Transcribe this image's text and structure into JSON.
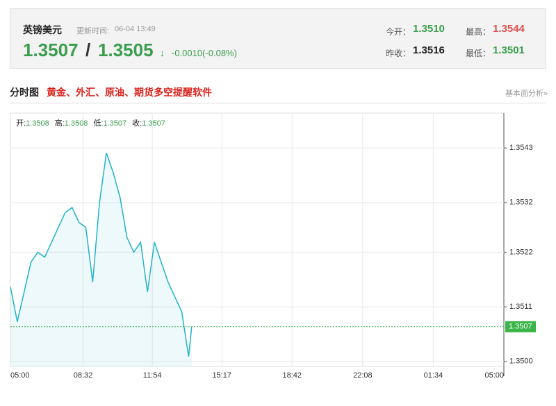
{
  "header": {
    "name": "英镑美元",
    "update_label": "更新时间:",
    "update_time": "06-04 13:49",
    "bid": "1.3507",
    "sep": "/",
    "ask": "1.3505",
    "arrow": "↓",
    "change": "-0.0010(-0.08%)",
    "stats": [
      {
        "label": "今开：",
        "value": "1.3510"
      },
      {
        "label": "最高：",
        "value": "1.3544"
      },
      {
        "label": "昨收：",
        "value": "1.3516"
      },
      {
        "label": "最低：",
        "value": "1.3501"
      }
    ]
  },
  "section": {
    "title": "分时图",
    "promo": "黄金、外汇、原油、期货多空提醒软件",
    "link": "基本面分析»"
  },
  "chart_data": {
    "type": "line",
    "legend": [
      {
        "label": "开:",
        "value": "1.3508"
      },
      {
        "label": "高:",
        "value": "1.3508"
      },
      {
        "label": "低:",
        "value": "1.3507"
      },
      {
        "label": "收:",
        "value": "1.3507"
      }
    ],
    "xticks": [
      "05:00",
      "08:32",
      "11:54",
      "15:17",
      "18:42",
      "22:08",
      "01:34",
      "05:00"
    ],
    "ylim": [
      1.3499,
      1.355
    ],
    "yticks": [
      {
        "value": 1.35,
        "label": "1.3500"
      },
      1.3511,
      1.3522,
      1.3532,
      1.3543
    ],
    "last_price": 1.3507,
    "grid": true,
    "series": [
      {
        "color": "#1fb3c9",
        "x": [
          "05:00",
          "05:20",
          "05:40",
          "06:00",
          "06:20",
          "06:40",
          "07:00",
          "07:20",
          "07:40",
          "08:00",
          "08:20",
          "08:40",
          "09:00",
          "09:20",
          "09:40",
          "10:00",
          "10:20",
          "10:40",
          "11:00",
          "11:20",
          "11:40",
          "12:00",
          "12:20",
          "12:40",
          "13:00",
          "13:20",
          "13:40",
          "13:49"
        ],
        "values": [
          1.3515,
          1.3508,
          1.3514,
          1.352,
          1.3522,
          1.3521,
          1.3524,
          1.3527,
          1.353,
          1.3531,
          1.3528,
          1.3527,
          1.3516,
          1.3532,
          1.3542,
          1.3538,
          1.3533,
          1.3525,
          1.3522,
          1.3524,
          1.3514,
          1.3524,
          1.352,
          1.3516,
          1.3513,
          1.351,
          1.3501,
          1.3507
        ]
      }
    ]
  }
}
